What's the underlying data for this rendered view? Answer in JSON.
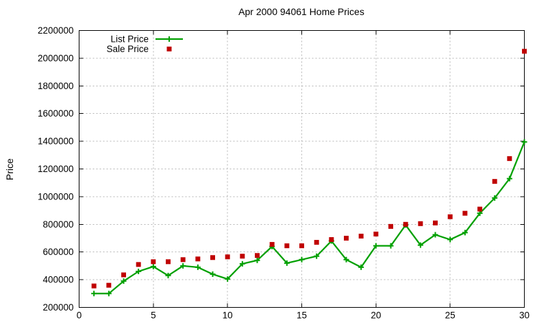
{
  "chart_data": {
    "type": "line",
    "title": "Apr 2000 94061 Home Prices",
    "xlabel": "",
    "ylabel": "Price",
    "xlim": [
      0,
      30
    ],
    "ylim": [
      200000,
      2200000
    ],
    "xticks": [
      0,
      5,
      10,
      15,
      20,
      25,
      30
    ],
    "yticks": [
      200000,
      400000,
      600000,
      800000,
      1000000,
      1200000,
      1400000,
      1600000,
      1800000,
      2000000,
      2200000
    ],
    "grid": true,
    "legend_position": "top-left",
    "x": [
      1,
      2,
      3,
      4,
      5,
      6,
      7,
      8,
      9,
      10,
      11,
      12,
      13,
      14,
      15,
      16,
      17,
      18,
      19,
      20,
      21,
      22,
      23,
      24,
      25,
      26,
      27,
      28,
      29,
      30
    ],
    "series": [
      {
        "name": "List Price",
        "style": "line-with-plus-markers",
        "color": "#00a000",
        "values": [
          300000,
          300000,
          390000,
          460000,
          495000,
          430000,
          500000,
          490000,
          440000,
          405000,
          515000,
          540000,
          640000,
          520000,
          545000,
          570000,
          680000,
          545000,
          490000,
          645000,
          645000,
          795000,
          650000,
          725000,
          690000,
          740000,
          880000,
          990000,
          1130000,
          1395000
        ]
      },
      {
        "name": "Sale Price",
        "style": "square-markers",
        "color": "#c00000",
        "values": [
          355000,
          360000,
          435000,
          510000,
          530000,
          530000,
          545000,
          550000,
          560000,
          565000,
          570000,
          575000,
          655000,
          645000,
          645000,
          670000,
          690000,
          700000,
          715000,
          730000,
          785000,
          800000,
          805000,
          810000,
          855000,
          880000,
          910000,
          1110000,
          1275000,
          2050000
        ]
      }
    ]
  },
  "colors": {
    "list_price": "#00a000",
    "sale_price": "#c00000",
    "grid": "#b5b5b5",
    "frame": "#000000",
    "background": "#ffffff"
  }
}
